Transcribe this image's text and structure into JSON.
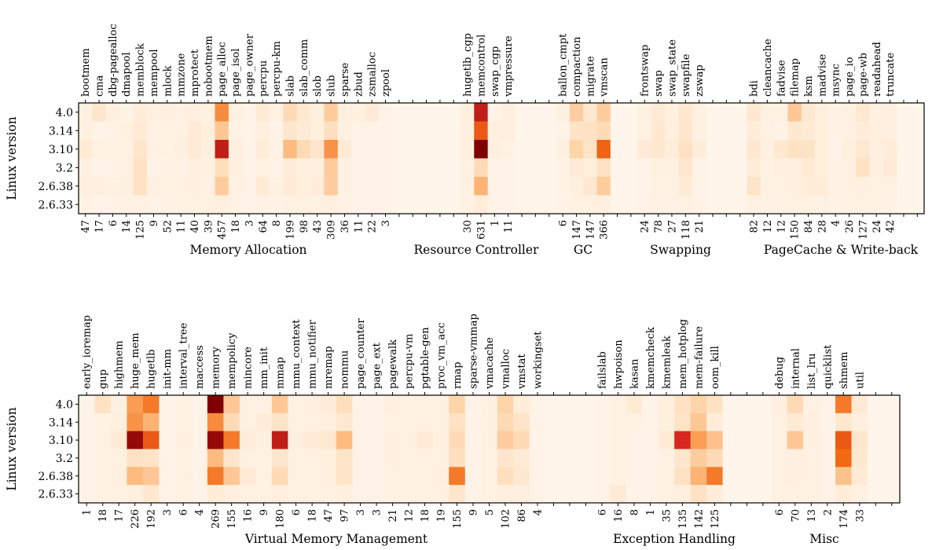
{
  "chart_data": [
    {
      "type": "heatmap",
      "ylabel": "Linux version",
      "versions": [
        "4.0",
        "3.14",
        "3.10",
        "3.2",
        "2.6.38",
        "2.6.33"
      ],
      "categories": [
        {
          "name": "bootmem",
          "total": "47"
        },
        {
          "name": "cma",
          "total": "17"
        },
        {
          "name": "dbg-pagealloc",
          "total": "6"
        },
        {
          "name": "dmapool",
          "total": "14"
        },
        {
          "name": "memblock",
          "total": "125"
        },
        {
          "name": "mempool",
          "total": "9"
        },
        {
          "name": "mlock",
          "total": "52"
        },
        {
          "name": "mmzone",
          "total": "11"
        },
        {
          "name": "mprotect",
          "total": "40"
        },
        {
          "name": "nobootmem",
          "total": "39"
        },
        {
          "name": "page_alloc",
          "total": "457"
        },
        {
          "name": "page_isol",
          "total": "18"
        },
        {
          "name": "page_owner",
          "total": "3"
        },
        {
          "name": "percpu",
          "total": "64"
        },
        {
          "name": "percpu-km",
          "total": "8"
        },
        {
          "name": "slab",
          "total": "199"
        },
        {
          "name": "slab_comm",
          "total": "98"
        },
        {
          "name": "slob",
          "total": "43"
        },
        {
          "name": "slub",
          "total": "309"
        },
        {
          "name": "sparse",
          "total": "36"
        },
        {
          "name": "zbud",
          "total": "11"
        },
        {
          "name": "zsmalloc",
          "total": "22"
        },
        {
          "name": "zpool",
          "total": "3"
        },
        {
          "name": "",
          "total": ""
        },
        {
          "name": "",
          "total": ""
        },
        {
          "name": "",
          "total": ""
        },
        {
          "name": "",
          "total": ""
        },
        {
          "name": "",
          "total": ""
        },
        {
          "name": "hugetlb_cgp",
          "total": "30"
        },
        {
          "name": "memcontrol",
          "total": "631"
        },
        {
          "name": "swap_cgp",
          "total": "1"
        },
        {
          "name": "vmpressure",
          "total": "11"
        },
        {
          "name": "",
          "total": ""
        },
        {
          "name": "",
          "total": ""
        },
        {
          "name": "",
          "total": ""
        },
        {
          "name": "ballon_cmpt",
          "total": "6"
        },
        {
          "name": "compaction",
          "total": "147"
        },
        {
          "name": "migrate",
          "total": "147"
        },
        {
          "name": "vmscan",
          "total": "366"
        },
        {
          "name": "",
          "total": ""
        },
        {
          "name": "",
          "total": ""
        },
        {
          "name": "frontswap",
          "total": "24"
        },
        {
          "name": "swap",
          "total": "78"
        },
        {
          "name": "swap_state",
          "total": "27"
        },
        {
          "name": "swapfile",
          "total": "118"
        },
        {
          "name": "zswap",
          "total": "21"
        },
        {
          "name": "",
          "total": ""
        },
        {
          "name": "",
          "total": ""
        },
        {
          "name": "",
          "total": ""
        },
        {
          "name": "bdi",
          "total": "82"
        },
        {
          "name": "cleancache",
          "total": "12"
        },
        {
          "name": "fadvise",
          "total": "12"
        },
        {
          "name": "filemap",
          "total": "150"
        },
        {
          "name": "ksm",
          "total": "84"
        },
        {
          "name": "madvise",
          "total": "28"
        },
        {
          "name": "msync",
          "total": "4"
        },
        {
          "name": "page_io",
          "total": "26"
        },
        {
          "name": "page-wb",
          "total": "127"
        },
        {
          "name": "readahead",
          "total": "24"
        },
        {
          "name": "truncate",
          "total": "42"
        },
        {
          "name": "",
          "total": ""
        },
        {
          "name": "",
          "total": ""
        }
      ],
      "groups": [
        "Memory Allocation",
        "Resource Controller",
        "GC",
        "Swapping",
        "PageCache & Write-back"
      ],
      "values": [
        [
          0.05,
          0.14,
          0.06,
          0.02,
          0.08,
          0.05,
          0.06,
          0.04,
          0.06,
          0.05,
          0.5,
          0.05,
          0.02,
          0.1,
          0.04,
          0.22,
          0.12,
          0.06,
          0.28,
          0.06,
          0.05,
          0.1,
          0.02,
          0,
          0,
          0,
          0,
          0,
          0.06,
          0.85,
          0.02,
          0.06,
          0,
          0,
          0,
          0.04,
          0.28,
          0.12,
          0.28,
          0,
          0,
          0.04,
          0.1,
          0.05,
          0.12,
          0.05,
          0,
          0,
          0,
          0.12,
          0.04,
          0.04,
          0.3,
          0.12,
          0.06,
          0.02,
          0.04,
          0.12,
          0.05,
          0.06,
          0,
          0
        ],
        [
          0.05,
          0.02,
          0.02,
          0.05,
          0.1,
          0.03,
          0.04,
          0.04,
          0.1,
          0.06,
          0.3,
          0.03,
          0.02,
          0.06,
          0.02,
          0.14,
          0.1,
          0.06,
          0.2,
          0.04,
          0.02,
          0.02,
          0.02,
          0,
          0,
          0,
          0,
          0,
          0.06,
          0.65,
          0.06,
          0.06,
          0,
          0,
          0,
          0.02,
          0.16,
          0.18,
          0.22,
          0,
          0,
          0.04,
          0.12,
          0.06,
          0.14,
          0.05,
          0,
          0,
          0,
          0.08,
          0.04,
          0.02,
          0.12,
          0.1,
          0.06,
          0.02,
          0.04,
          0.08,
          0.06,
          0.06,
          0,
          0
        ],
        [
          0.1,
          0.04,
          0.03,
          0.04,
          0.14,
          0.04,
          0.04,
          0.06,
          0.1,
          0.06,
          0.85,
          0.06,
          0.02,
          0.08,
          0.03,
          0.35,
          0.22,
          0.14,
          0.48,
          0.1,
          0.02,
          0.02,
          0.02,
          0,
          0,
          0,
          0,
          0,
          0.06,
          1.0,
          0.06,
          0.03,
          0,
          0,
          0,
          0.04,
          0.25,
          0.16,
          0.62,
          0,
          0,
          0.1,
          0.12,
          0.08,
          0.18,
          0.08,
          0,
          0,
          0,
          0.12,
          0.04,
          0.12,
          0.18,
          0.16,
          0.06,
          0.02,
          0.06,
          0.12,
          0.06,
          0.08,
          0,
          0
        ],
        [
          0.04,
          0.02,
          0.02,
          0.04,
          0.18,
          0.02,
          0.03,
          0.03,
          0.06,
          0.04,
          0.2,
          0.06,
          0.02,
          0.04,
          0.02,
          0.08,
          0.06,
          0.06,
          0.28,
          0.04,
          0.02,
          0.02,
          0.02,
          0,
          0,
          0,
          0,
          0,
          0.04,
          0.22,
          0.02,
          0.02,
          0,
          0,
          0,
          0.02,
          0.1,
          0.06,
          0.18,
          0,
          0,
          0.02,
          0.05,
          0.05,
          0.12,
          0.02,
          0,
          0,
          0,
          0.08,
          0.04,
          0.06,
          0.06,
          0.1,
          0.06,
          0.02,
          0.04,
          0.18,
          0.06,
          0.1,
          0,
          0
        ],
        [
          0.06,
          0.06,
          0.04,
          0.06,
          0.18,
          0.04,
          0.04,
          0.04,
          0.06,
          0.03,
          0.28,
          0.04,
          0.02,
          0.1,
          0.04,
          0.1,
          0.06,
          0.08,
          0.28,
          0.04,
          0.02,
          0.02,
          0.02,
          0,
          0,
          0,
          0,
          0,
          0.04,
          0.38,
          0.02,
          0.02,
          0,
          0,
          0,
          0.02,
          0.06,
          0.12,
          0.28,
          0,
          0,
          0.02,
          0.04,
          0.04,
          0.1,
          0.02,
          0,
          0,
          0,
          0.16,
          0.04,
          0.04,
          0.06,
          0.08,
          0.08,
          0.02,
          0.04,
          0.06,
          0.04,
          0.04,
          0,
          0
        ],
        [
          0.03,
          0.02,
          0.02,
          0.03,
          0.04,
          0.02,
          0.03,
          0.03,
          0.04,
          0.04,
          0.06,
          0.03,
          0.02,
          0.03,
          0.02,
          0.04,
          0.04,
          0.04,
          0.06,
          0.03,
          0.02,
          0.02,
          0.02,
          0,
          0,
          0,
          0,
          0,
          0.03,
          0.08,
          0.02,
          0.02,
          0,
          0,
          0,
          0.02,
          0.04,
          0.04,
          0.06,
          0,
          0,
          0.02,
          0.03,
          0.03,
          0.04,
          0.02,
          0,
          0,
          0,
          0.04,
          0.03,
          0.03,
          0.04,
          0.04,
          0.04,
          0.02,
          0.03,
          0.04,
          0.03,
          0.03,
          0,
          0
        ]
      ]
    },
    {
      "type": "heatmap",
      "ylabel": "Linux version",
      "versions": [
        "4.0",
        "3.14",
        "3.10",
        "3.2",
        "2.6.38",
        "2.6.33"
      ],
      "categories": [
        {
          "name": "early_ioremap",
          "total": "1"
        },
        {
          "name": "gup",
          "total": "18"
        },
        {
          "name": "highmem",
          "total": "17"
        },
        {
          "name": "huge_mem",
          "total": "226"
        },
        {
          "name": "hugetlb",
          "total": "192"
        },
        {
          "name": "init-mm",
          "total": "3"
        },
        {
          "name": "interval_tree",
          "total": "6"
        },
        {
          "name": "maccess",
          "total": "4"
        },
        {
          "name": "memory",
          "total": "269"
        },
        {
          "name": "mempolicy",
          "total": "155"
        },
        {
          "name": "mincore",
          "total": "16"
        },
        {
          "name": "mm_init",
          "total": "9"
        },
        {
          "name": "mmap",
          "total": "180"
        },
        {
          "name": "mmu_context",
          "total": "6"
        },
        {
          "name": "mmu_notifier",
          "total": "18"
        },
        {
          "name": "mremap",
          "total": "47"
        },
        {
          "name": "nommu",
          "total": "97"
        },
        {
          "name": "page_counter",
          "total": "3"
        },
        {
          "name": "page_ext",
          "total": "3"
        },
        {
          "name": "pagewalk",
          "total": "21"
        },
        {
          "name": "percpu-vm",
          "total": "12"
        },
        {
          "name": "pgtable-gen",
          "total": "18"
        },
        {
          "name": "proc_vm_acc",
          "total": "19"
        },
        {
          "name": "rmap",
          "total": "155"
        },
        {
          "name": "sparse-vmmap",
          "total": "9"
        },
        {
          "name": "vmacache",
          "total": "5"
        },
        {
          "name": "vmalloc",
          "total": "102"
        },
        {
          "name": "vmstat",
          "total": "86"
        },
        {
          "name": "workingset",
          "total": "4"
        },
        {
          "name": "",
          "total": ""
        },
        {
          "name": "",
          "total": ""
        },
        {
          "name": "",
          "total": ""
        },
        {
          "name": "failslab",
          "total": "6"
        },
        {
          "name": "hwpoison",
          "total": "16"
        },
        {
          "name": "kasan",
          "total": "8"
        },
        {
          "name": "kmemcheck",
          "total": "1"
        },
        {
          "name": "kmemleak",
          "total": "35"
        },
        {
          "name": "mem_hotplog",
          "total": "135"
        },
        {
          "name": "mem-failure",
          "total": "142"
        },
        {
          "name": "oom_kill",
          "total": "125"
        },
        {
          "name": "",
          "total": ""
        },
        {
          "name": "",
          "total": ""
        },
        {
          "name": "",
          "total": ""
        },
        {
          "name": "debug",
          "total": "6"
        },
        {
          "name": "internal",
          "total": "70"
        },
        {
          "name": "list_lru",
          "total": "13"
        },
        {
          "name": "quicklist",
          "total": "2"
        },
        {
          "name": "shmem",
          "total": "174"
        },
        {
          "name": "util",
          "total": "33"
        },
        {
          "name": "",
          "total": ""
        },
        {
          "name": "",
          "total": ""
        }
      ],
      "groups": [
        "Virtual Memory Management",
        "Exception Handling",
        "Misc"
      ],
      "values": [
        [
          0.02,
          0.18,
          0.04,
          0.45,
          0.55,
          0.02,
          0.04,
          0.02,
          1.0,
          0.3,
          0.04,
          0.04,
          0.3,
          0.04,
          0.06,
          0.08,
          0.2,
          0.02,
          0.02,
          0.06,
          0.04,
          0.04,
          0.04,
          0.25,
          0.02,
          0.04,
          0.25,
          0.08,
          0.02,
          0,
          0,
          0,
          0.02,
          0.04,
          0.1,
          0.02,
          0.06,
          0.18,
          0.25,
          0.18,
          0,
          0,
          0,
          0.06,
          0.22,
          0.04,
          0.02,
          0.55,
          0.1,
          0,
          0
        ],
        [
          0.02,
          0.04,
          0.06,
          0.48,
          0.38,
          0.02,
          0.04,
          0.02,
          0.5,
          0.22,
          0.04,
          0.08,
          0.16,
          0.04,
          0.04,
          0.06,
          0.12,
          0.02,
          0.02,
          0.04,
          0.04,
          0.04,
          0.04,
          0.18,
          0.02,
          0.04,
          0.22,
          0.16,
          0.02,
          0,
          0,
          0,
          0.02,
          0.04,
          0.04,
          0.02,
          0.06,
          0.16,
          0.3,
          0.08,
          0,
          0,
          0,
          0.04,
          0.1,
          0.06,
          0.02,
          0.12,
          0.06,
          0,
          0
        ],
        [
          0.02,
          0.04,
          0.1,
          0.95,
          0.65,
          0.02,
          0.06,
          0.02,
          0.95,
          0.55,
          0.08,
          0.04,
          0.85,
          0.06,
          0.1,
          0.12,
          0.35,
          0.02,
          0.02,
          0.06,
          0.04,
          0.1,
          0.06,
          0.22,
          0.02,
          0.04,
          0.28,
          0.22,
          0.02,
          0,
          0,
          0,
          0.02,
          0.04,
          0.02,
          0.02,
          0.1,
          0.8,
          0.45,
          0.32,
          0,
          0,
          0,
          0.04,
          0.3,
          0.04,
          0.02,
          0.65,
          0.14,
          0,
          0
        ],
        [
          0.02,
          0.04,
          0.04,
          0.18,
          0.16,
          0.02,
          0.04,
          0.02,
          0.35,
          0.14,
          0.04,
          0.04,
          0.14,
          0.04,
          0.04,
          0.06,
          0.16,
          0.02,
          0.02,
          0.06,
          0.04,
          0.04,
          0.04,
          0.2,
          0.02,
          0.04,
          0.14,
          0.1,
          0.02,
          0,
          0,
          0,
          0.02,
          0.04,
          0.02,
          0.02,
          0.04,
          0.14,
          0.28,
          0.22,
          0,
          0,
          0,
          0.04,
          0.06,
          0.04,
          0.02,
          0.6,
          0.12,
          0,
          0
        ],
        [
          0.02,
          0.04,
          0.06,
          0.35,
          0.3,
          0.02,
          0.04,
          0.02,
          0.55,
          0.3,
          0.1,
          0.04,
          0.22,
          0.04,
          0.04,
          0.06,
          0.16,
          0.02,
          0.02,
          0.04,
          0.04,
          0.04,
          0.06,
          0.55,
          0.02,
          0.04,
          0.2,
          0.12,
          0.02,
          0,
          0,
          0,
          0.02,
          0.04,
          0.02,
          0.02,
          0.04,
          0.18,
          0.38,
          0.55,
          0,
          0,
          0,
          0.04,
          0.06,
          0.04,
          0.02,
          0.32,
          0.1,
          0,
          0
        ],
        [
          0.02,
          0.04,
          0.04,
          0.06,
          0.12,
          0.02,
          0.04,
          0.02,
          0.08,
          0.06,
          0.04,
          0.04,
          0.06,
          0.04,
          0.04,
          0.04,
          0.06,
          0.02,
          0.02,
          0.04,
          0.04,
          0.04,
          0.04,
          0.14,
          0.02,
          0.04,
          0.06,
          0.06,
          0.02,
          0,
          0,
          0,
          0.02,
          0.1,
          0.02,
          0.02,
          0.04,
          0.06,
          0.18,
          0.08,
          0,
          0,
          0,
          0.04,
          0.04,
          0.04,
          0.02,
          0.08,
          0.04,
          0,
          0
        ]
      ]
    }
  ]
}
